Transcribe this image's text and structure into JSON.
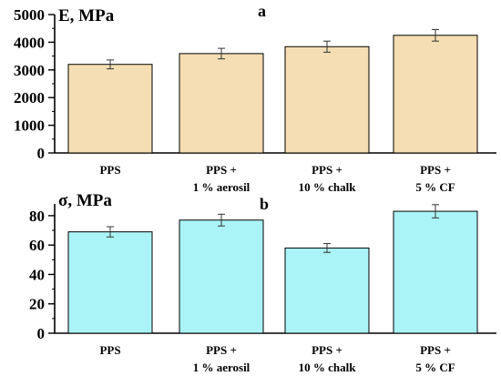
{
  "chart_data": [
    {
      "type": "bar",
      "panel_label": "a",
      "ylabel": "E, MPa",
      "ylim": [
        0,
        5000
      ],
      "yticks": [
        "0",
        "1000",
        "2000",
        "3000",
        "4000",
        "5000"
      ],
      "ytick_values": [
        0,
        1000,
        2000,
        3000,
        4000,
        5000
      ],
      "minor_step": 500,
      "bar_color": "#f5deb3",
      "categories": [
        [
          "PPS"
        ],
        [
          "PPS +",
          "1 % aerosil"
        ],
        [
          "PPS +",
          "10 % chalk"
        ],
        [
          "PPS +",
          "5 % CF"
        ]
      ],
      "values": [
        3200,
        3590,
        3840,
        4250
      ],
      "errors": [
        160,
        190,
        200,
        210
      ],
      "grid": false,
      "legend": "none"
    },
    {
      "type": "bar",
      "panel_label": "b",
      "ylabel": "σ, MPa",
      "ylim": [
        0,
        88
      ],
      "yticks": [
        "0",
        "20",
        "40",
        "60",
        "80"
      ],
      "ytick_values": [
        0,
        20,
        40,
        60,
        80
      ],
      "minor_step": 10,
      "bar_color": "#aaf4f7",
      "categories": [
        [
          "PPS"
        ],
        [
          "PPS +",
          "1 % aerosil"
        ],
        [
          "PPS +",
          "10 % chalk"
        ],
        [
          "PPS +",
          "5 % CF"
        ]
      ],
      "values": [
        69,
        77,
        58,
        83
      ],
      "errors": [
        3.5,
        4,
        3,
        4.5
      ],
      "grid": false,
      "legend": "none"
    }
  ]
}
